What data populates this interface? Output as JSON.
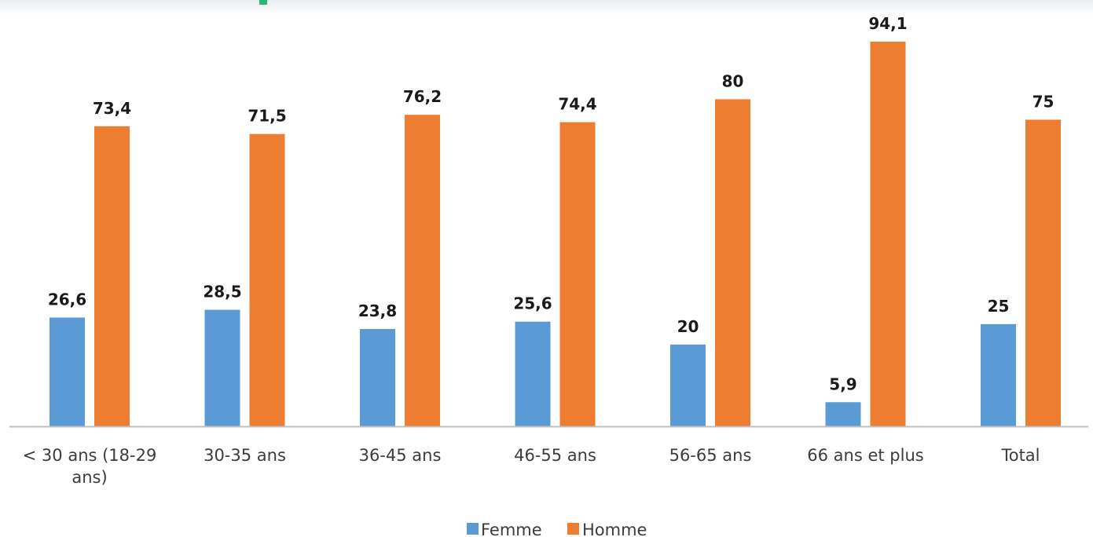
{
  "chart_data": {
    "type": "bar",
    "title": "",
    "xlabel": "",
    "ylabel": "",
    "categories": [
      "< 30 ans (18-29 ans)",
      "30-35 ans",
      "36-45 ans",
      "46-55 ans",
      "56-65 ans",
      "66 ans et plus",
      "Total"
    ],
    "category_lines": [
      [
        "< 30 ans (18-29",
        "ans)"
      ],
      [
        "30-35 ans"
      ],
      [
        "36-45 ans"
      ],
      [
        "46-55 ans"
      ],
      [
        "56-65 ans"
      ],
      [
        "66 ans et plus"
      ],
      [
        "Total"
      ]
    ],
    "series": [
      {
        "name": "Femme",
        "color": "#5b9bd5",
        "values": [
          26.6,
          28.5,
          23.8,
          25.6,
          20,
          5.9,
          25
        ],
        "labels": [
          "26,6",
          "28,5",
          "23,8",
          "25,6",
          "20",
          "5,9",
          "25"
        ]
      },
      {
        "name": "Homme",
        "color": "#ed7d31",
        "values": [
          73.4,
          71.5,
          76.2,
          74.4,
          80,
          94.1,
          75
        ],
        "labels": [
          "73,4",
          "71,5",
          "76,2",
          "74,4",
          "80",
          "94,1",
          "75"
        ]
      }
    ],
    "ylim": [
      0,
      100
    ],
    "grid": false,
    "legend_position": "bottom-center"
  },
  "legend": {
    "items": [
      "Femme",
      "Homme"
    ]
  },
  "colors": {
    "axis": "#bfbfbf",
    "text": "#3c3c3c",
    "value_text": "#1a1a1a"
  }
}
